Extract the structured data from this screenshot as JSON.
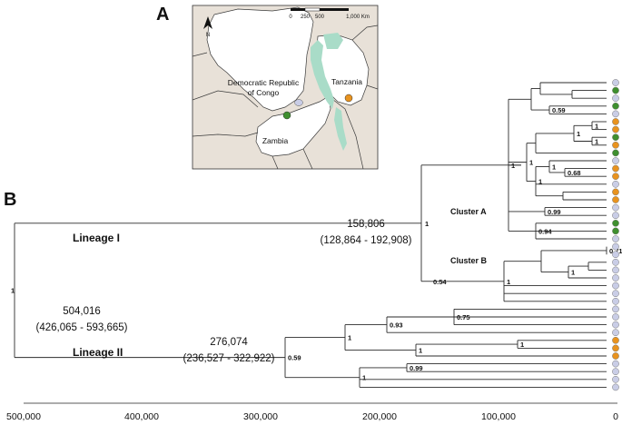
{
  "panel_a": {
    "letter": "A",
    "scale_labels": [
      "0",
      "250",
      "500",
      "1,000 Km"
    ],
    "countries": [
      "Democratic Republic of Congo",
      "Tanzania",
      "Zambia"
    ],
    "country_lines": {
      "drc_line1": "Democratic Republic",
      "drc_line2": "of Congo"
    },
    "compass": "N",
    "colors": {
      "land": "#e8e1d8",
      "highlight": "#ffffff",
      "lakes": "#a9dcc8",
      "border": "#3a3a3a"
    },
    "markers": [
      {
        "name": "green",
        "color": "#3f8f2f"
      },
      {
        "name": "orange",
        "color": "#e8931f"
      },
      {
        "name": "lavender",
        "color": "#c9cde6"
      }
    ]
  },
  "panel_b": {
    "letter": "B",
    "lineage_1": "Lineage I",
    "lineage_2": "Lineage II",
    "cluster_a": "Cluster A",
    "cluster_b": "Cluster B",
    "root_age": {
      "value": "504,016",
      "interval": "(426,065 - 593,665)",
      "support": "1"
    },
    "lineage1_age": {
      "value": "158,806",
      "interval": "(128,864 - 192,908)",
      "support": "1"
    },
    "lineage2_age": {
      "value": "276,074",
      "interval": "(236,527 - 322,922)",
      "support": "1"
    },
    "support_values": [
      "0.59",
      "1",
      "1",
      "1",
      "1",
      "1",
      "0.68",
      "1",
      "1",
      "0.99",
      "0.94",
      "1",
      "0.54",
      "1",
      "0.71",
      "0.93",
      "0.75",
      "1",
      "1",
      "1",
      "0.99",
      "1"
    ],
    "axis_ticks": [
      "500,000",
      "400,000",
      "300,000",
      "200,000",
      "100,000",
      "0"
    ],
    "tip_colors": {
      "grey": "#c9cde6",
      "green": "#3f8f2f",
      "orange": "#e8931f"
    },
    "tips": [
      "grey",
      "green",
      "grey",
      "green",
      "grey",
      "orange",
      "orange",
      "green",
      "orange",
      "green",
      "grey",
      "orange",
      "orange",
      "grey",
      "orange",
      "orange",
      "grey",
      "grey",
      "green",
      "green",
      "grey",
      "grey",
      "grey",
      "grey",
      "grey",
      "grey",
      "grey",
      "grey",
      "grey",
      "grey",
      "grey",
      "grey",
      "grey",
      "orange",
      "orange",
      "orange",
      "grey",
      "grey",
      "grey",
      "grey"
    ]
  }
}
